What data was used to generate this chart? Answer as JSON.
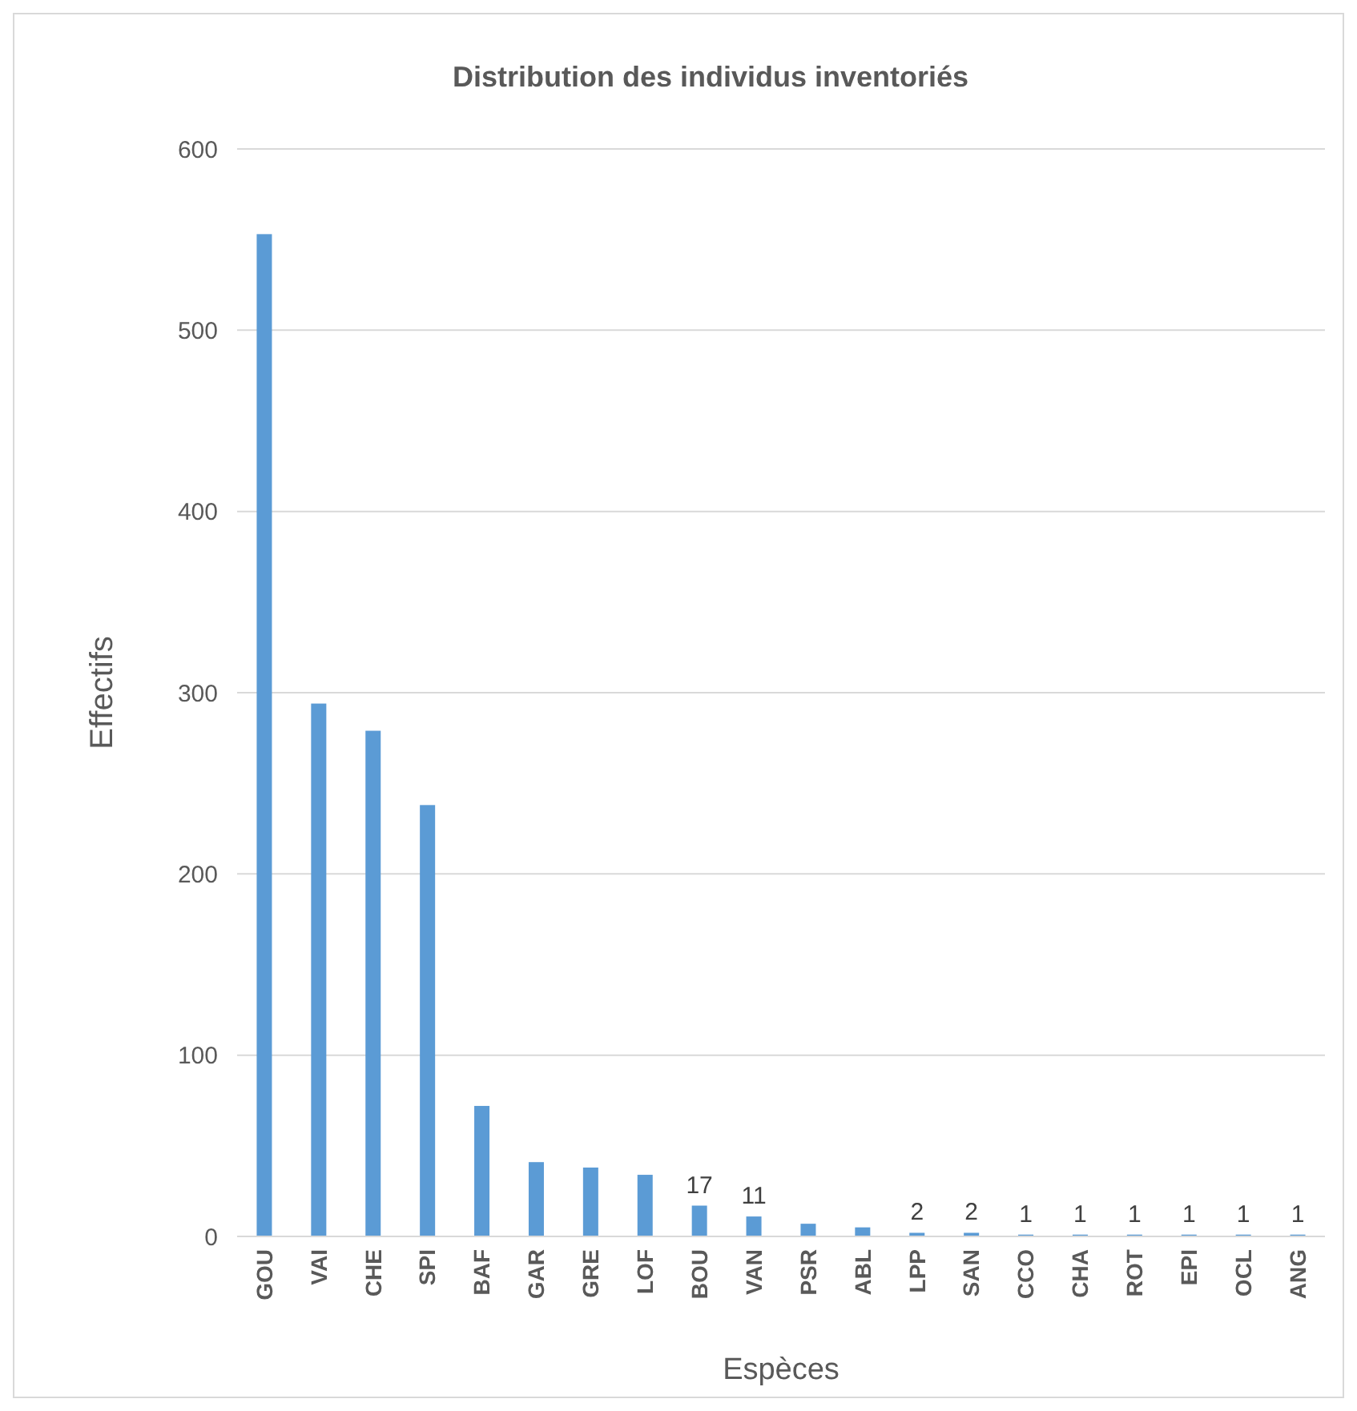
{
  "chart_data": {
    "type": "bar",
    "title": "Distribution des individus inventoriés",
    "xlabel": "Espèces",
    "ylabel": "Effectifs",
    "categories": [
      "GOU",
      "VAI",
      "CHE",
      "SPI",
      "BAF",
      "GAR",
      "GRE",
      "LOF",
      "BOU",
      "VAN",
      "PSR",
      "ABL",
      "LPP",
      "SAN",
      "CCO",
      "CHA",
      "ROT",
      "EPI",
      "OCL",
      "ANG"
    ],
    "values": [
      553,
      294,
      279,
      238,
      72,
      41,
      38,
      34,
      17,
      11,
      7,
      5,
      2,
      2,
      1,
      1,
      1,
      1,
      1,
      1
    ],
    "value_labels": [
      null,
      null,
      null,
      null,
      null,
      null,
      null,
      null,
      "17",
      "11",
      null,
      null,
      "2",
      "2",
      "1",
      "1",
      "1",
      "1",
      "1",
      "1"
    ],
    "color": "#5b9bd5",
    "ylim": [
      0,
      600
    ],
    "yticks": [
      0,
      100,
      200,
      300,
      400,
      500,
      600
    ],
    "grid": "y"
  }
}
